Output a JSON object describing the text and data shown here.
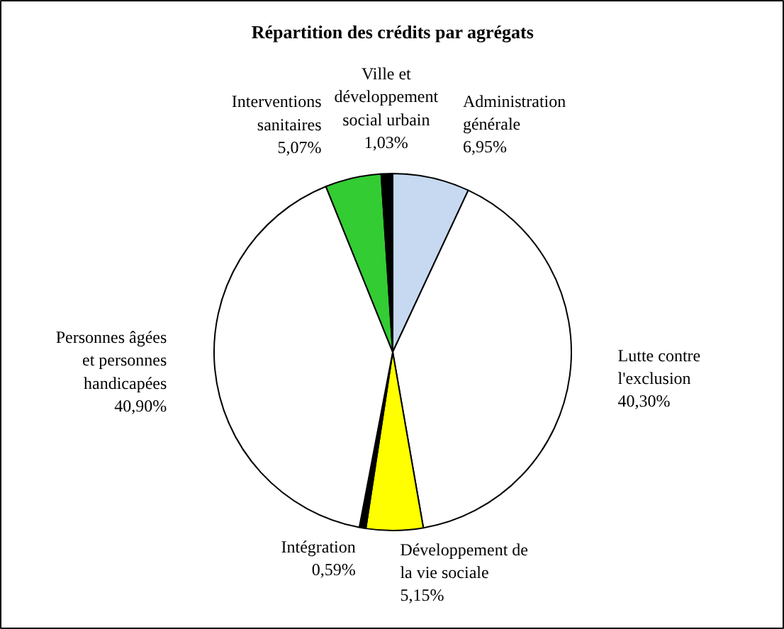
{
  "chart_data": {
    "type": "pie",
    "title": "Répartition des crédits par agrégats",
    "categories": [
      "Administration générale",
      "Lutte contre l'exclusion",
      "Développement de la vie sociale",
      "Intégration",
      "Personnes âgées et personnes handicapées",
      "Interventions sanitaires",
      "Ville et développement social urbain"
    ],
    "values": [
      6.95,
      40.3,
      5.15,
      0.59,
      40.9,
      5.07,
      1.03
    ],
    "value_labels": [
      "6,95%",
      "40,30%",
      "5,15%",
      "0,59%",
      "40,90%",
      "5,07%",
      "1,03%"
    ],
    "colors": [
      "#c6d9f0",
      "#ffffff",
      "#ffff00",
      "#000000",
      "#ffffff",
      "#33cc33",
      "#000000"
    ]
  }
}
